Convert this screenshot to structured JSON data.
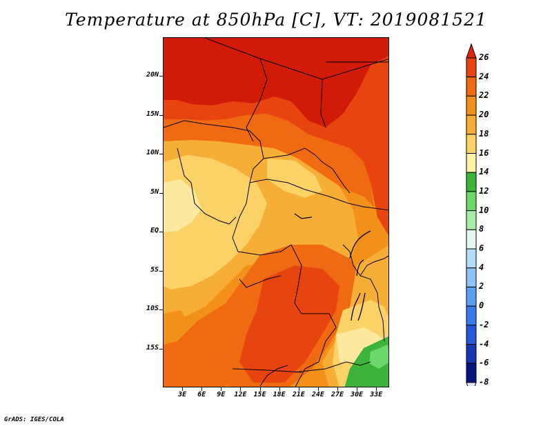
{
  "title": "Temperature at 850hPa [C], VT: 2019081521",
  "credit": "GrADS: IGES/COLA",
  "map": {
    "variable": "Temperature at 850hPa",
    "units": "C",
    "valid_time": "2019081521",
    "lon_range": [
      0,
      35
    ],
    "lat_range": [
      -20,
      25
    ],
    "lat_ticks": [
      {
        "value": 20,
        "label": "20N"
      },
      {
        "value": 15,
        "label": "15N"
      },
      {
        "value": 10,
        "label": "10N"
      },
      {
        "value": 5,
        "label": "5N"
      },
      {
        "value": 0,
        "label": "EQ"
      },
      {
        "value": -5,
        "label": "5S"
      },
      {
        "value": -10,
        "label": "10S"
      },
      {
        "value": -15,
        "label": "15S"
      }
    ],
    "lon_ticks": [
      {
        "value": 3,
        "label": "3E"
      },
      {
        "value": 6,
        "label": "6E"
      },
      {
        "value": 9,
        "label": "9E"
      },
      {
        "value": 12,
        "label": "12E"
      },
      {
        "value": 15,
        "label": "15E"
      },
      {
        "value": 18,
        "label": "18E"
      },
      {
        "value": 21,
        "label": "21E"
      },
      {
        "value": 24,
        "label": "24E"
      },
      {
        "value": 27,
        "label": "27E"
      },
      {
        "value": 30,
        "label": "30E"
      },
      {
        "value": 33,
        "label": "33E"
      }
    ]
  },
  "colorbar": {
    "levels": [
      26,
      24,
      22,
      20,
      18,
      16,
      14,
      12,
      10,
      8,
      6,
      4,
      2,
      0,
      -2,
      -4,
      -6,
      -8
    ],
    "labels": [
      "26",
      "24",
      "22",
      "20",
      "18",
      "16",
      "14",
      "12",
      "10",
      "8",
      "6",
      "4",
      "2",
      "0",
      "-2",
      "-4",
      "-6",
      "-8"
    ],
    "colors": [
      "#e0230a",
      "#e84410",
      "#ef6a10",
      "#f2901a",
      "#f6ae36",
      "#fad266",
      "#fdf2a6",
      "#3cb43c",
      "#6cd86c",
      "#a8ecaa",
      "#e2f8f0",
      "#b4dcf8",
      "#8cc4f6",
      "#5a9ef2",
      "#3a7aec",
      "#2358dc",
      "#1634b4",
      "#0a1480",
      "#e2e2f8"
    ]
  },
  "palette": {
    "t26": "#d21a08",
    "t24": "#e84410",
    "t22": "#ef6a10",
    "t20": "#f2901a",
    "t18": "#f6ae36",
    "t16": "#fad266",
    "t14": "#fdeaa0",
    "t12": "#3cb43c",
    "t10": "#6cd86c"
  }
}
